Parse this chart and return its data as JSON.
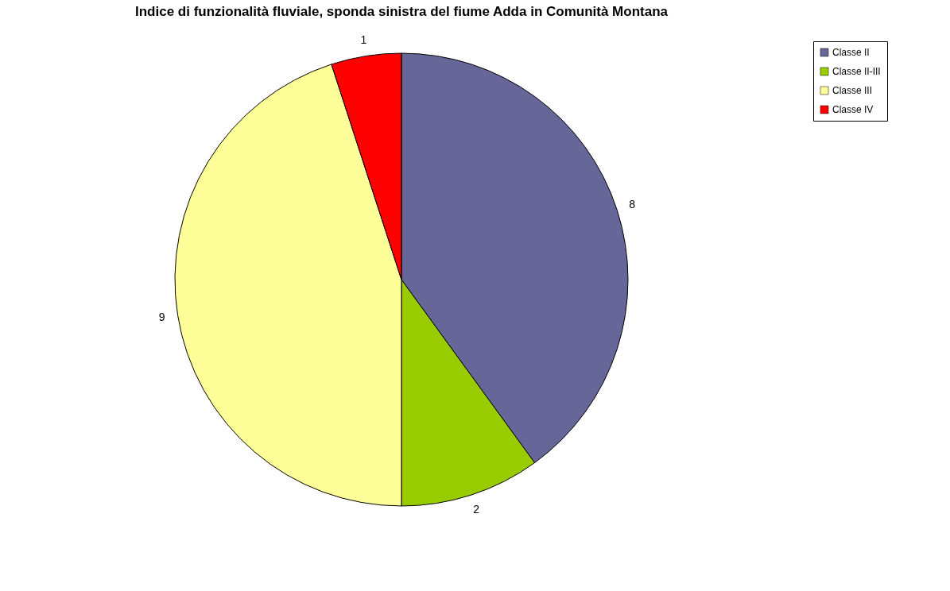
{
  "chart_data": {
    "type": "pie",
    "title": "Indice di funzionalità fluviale, sponda sinistra del fiume Adda in Comunità Montana",
    "categories": [
      "Classe II",
      "Classe II-III",
      "Classe III",
      "Classe IV"
    ],
    "values": [
      8,
      2,
      9,
      1
    ],
    "colors": [
      "#666699",
      "#99cc00",
      "#ffff99",
      "#ff0000"
    ],
    "data_labels": true,
    "legend": "right"
  }
}
